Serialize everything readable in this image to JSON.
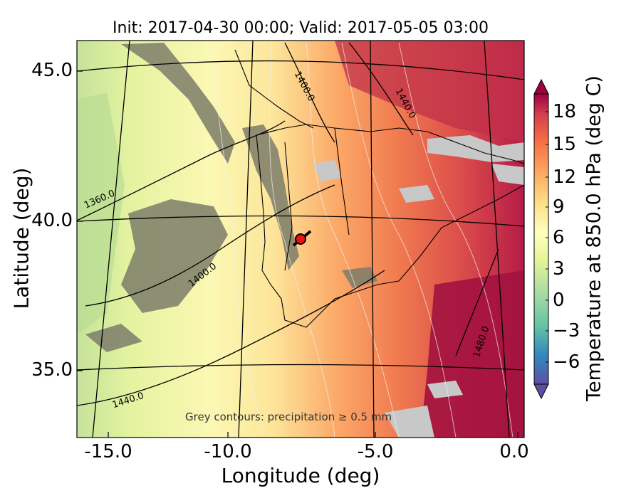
{
  "chart_data": {
    "type": "heatmap",
    "title": "Init: 2017-04-30 00:00; Valid: 2017-05-05 03:00",
    "xlabel": "Longitude (deg)",
    "ylabel": "Latitude (deg)",
    "xlim": [
      -16,
      0.2
    ],
    "ylim": [
      32.8,
      46.2
    ],
    "xticks": [
      "-15.0",
      "-10.0",
      "-5.0",
      "0.0"
    ],
    "yticks": [
      "35.0",
      "40.0",
      "45.0"
    ],
    "colorbar": {
      "label": "Temperature at 850.0 hPa (deg C)",
      "range": [
        -8,
        21
      ],
      "ticks": [
        "18",
        "15",
        "12",
        "9",
        "6",
        "3",
        "0",
        "−3",
        "−6"
      ],
      "extend": "both"
    },
    "contour_labels": [
      "1360.0",
      "1400.0",
      "1440.0",
      "1400.0",
      "1440.0",
      "1480.0"
    ],
    "annotation": "Grey contours: precipitation ≥ 0.5 mm",
    "marker": {
      "lon": -7.7,
      "lat": 39.3,
      "color": "#ee1111"
    }
  }
}
